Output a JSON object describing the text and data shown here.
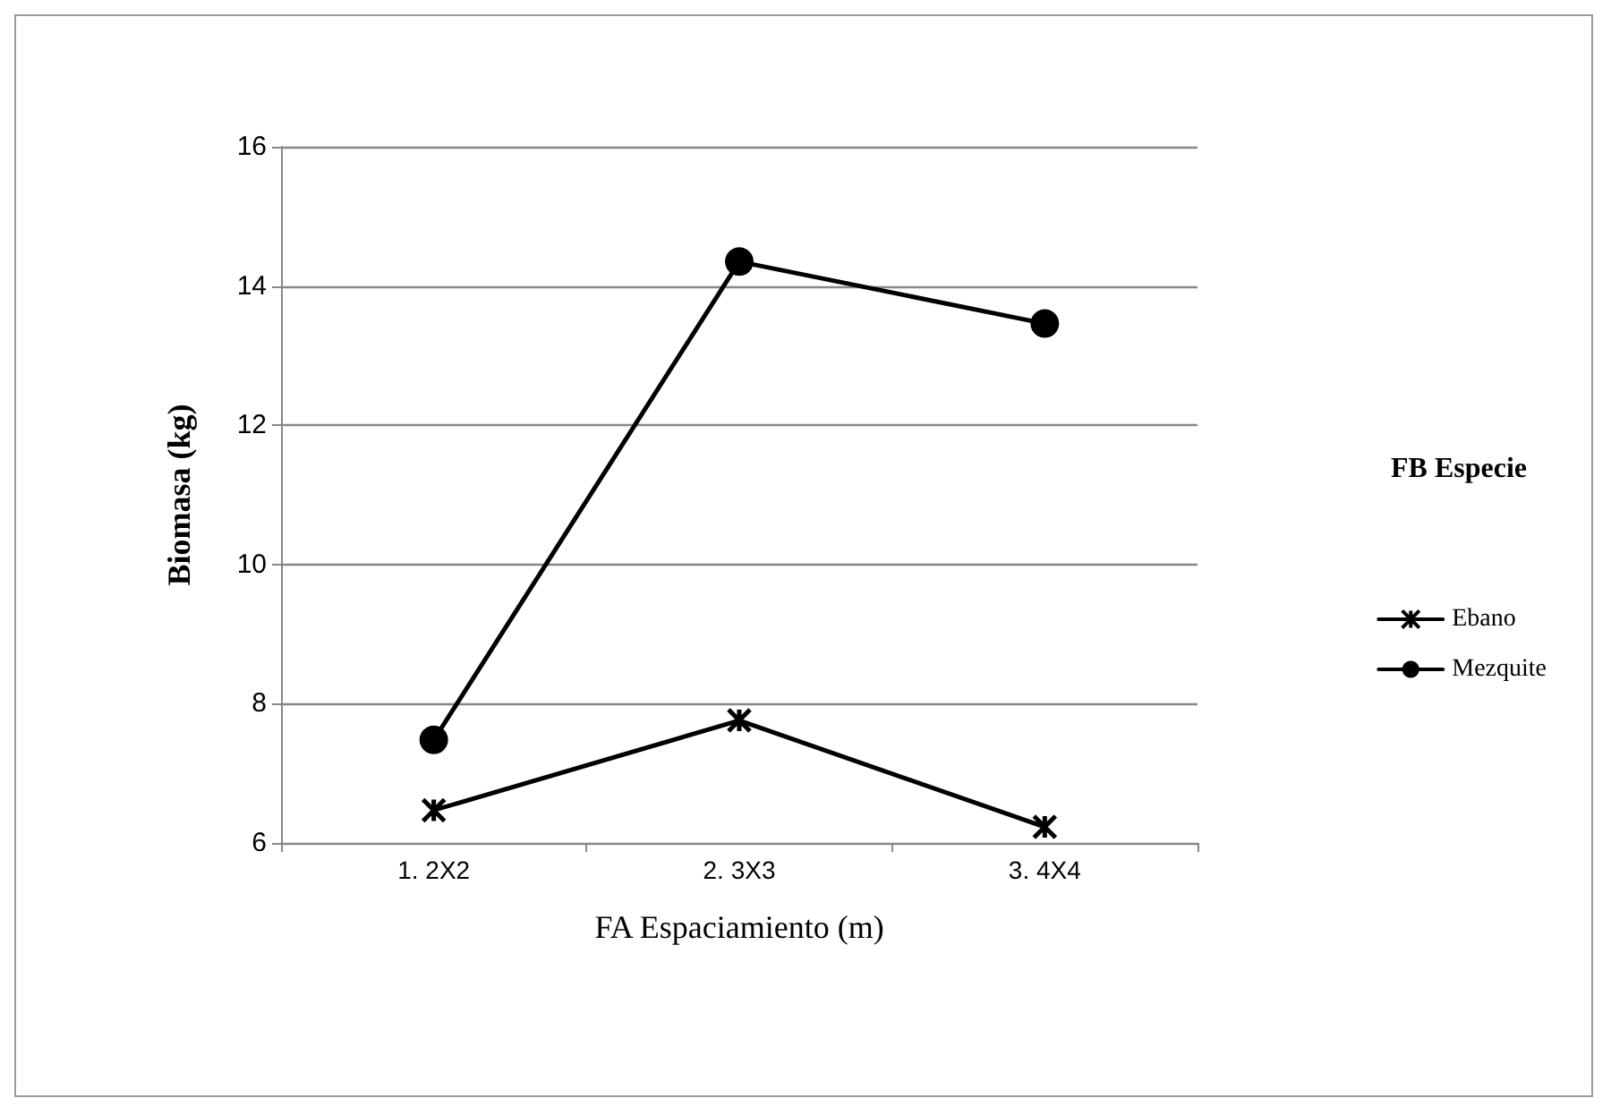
{
  "chart_data": {
    "type": "line",
    "xlabel": "FA Espaciamiento (m)",
    "ylabel": "Biomasa (kg)",
    "legend_title": "FB Especie",
    "categories": [
      "1. 2X2",
      "2. 3X3",
      "3. 4X4"
    ],
    "series": [
      {
        "name": "Ebano",
        "color": "#000000",
        "marker": "cross",
        "values": [
          6.47,
          7.76,
          6.23
        ]
      },
      {
        "name": "Mezquite",
        "color": "#000000",
        "marker": "circle",
        "values": [
          7.48,
          14.35,
          13.46
        ]
      }
    ],
    "ylim": [
      6,
      16
    ],
    "yticks": [
      6,
      8,
      10,
      12,
      14,
      16
    ],
    "grid": "y",
    "legend": "right",
    "line_style": "solid"
  }
}
